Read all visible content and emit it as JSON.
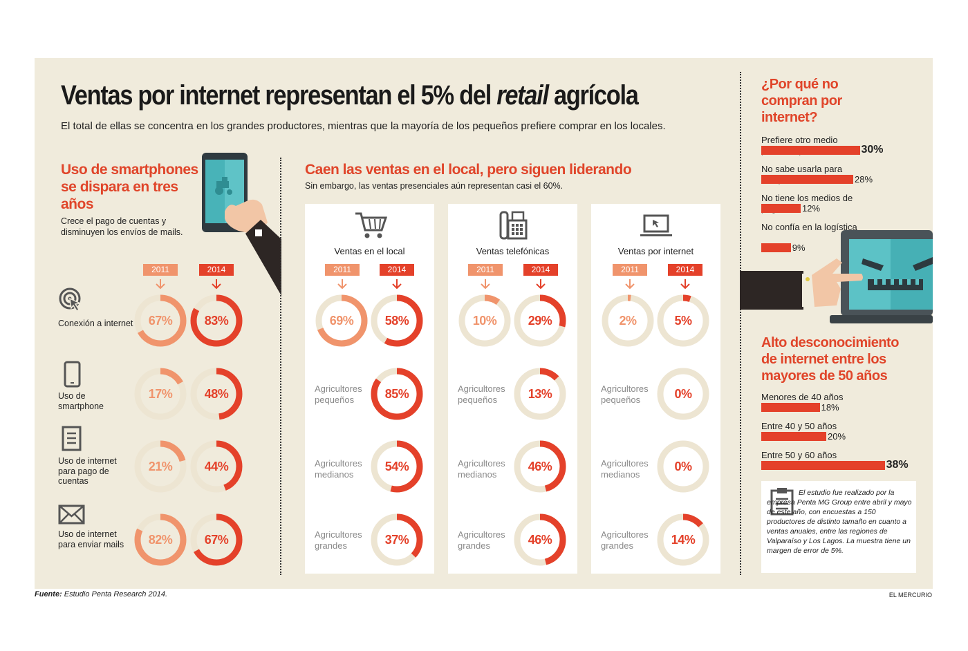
{
  "header": {
    "title_main": "Ventas por internet representan el 5% del ",
    "title_italic": "retail",
    "title_end": " agrícola",
    "subtitle": "El total de ellas se concentra en los grandes productores, mientras que la mayoría de los pequeños prefiere comprar en los locales."
  },
  "smartphones": {
    "title": "Uso de smartphones se dispara en tres años",
    "description": "Crece el pago de cuentas y disminuyen los envíos de mails."
  },
  "ventas": {
    "title": "Caen las ventas en el local, pero siguen liderando",
    "description": "Sin embargo, las ventas presenciales aún representan casi el 60%."
  },
  "year_labels": [
    "2011",
    "2014"
  ],
  "colors": {
    "y2011": "#f0946c",
    "y2014": "#e4412a",
    "track": "#ede5d2",
    "background": "#f0ebdc"
  },
  "chart_data": [
    {
      "type": "donut",
      "title": "Uso de smartphones se dispara en tres años",
      "categories": [
        "Conexión a internet",
        "Uso de smartphone",
        "Uso de internet para pago de cuentas",
        "Uso de internet para enviar mails"
      ],
      "icons": [
        "target-cursor-icon",
        "smartphone-icon",
        "document-icon",
        "envelope-icon"
      ],
      "series": [
        {
          "name": "2011",
          "values": [
            67,
            17,
            21,
            82
          ],
          "labels": [
            "67%",
            "17%",
            "21%",
            "82%"
          ]
        },
        {
          "name": "2014",
          "values": [
            83,
            48,
            44,
            67
          ],
          "labels": [
            "83%",
            "48%",
            "44%",
            "67%"
          ]
        }
      ]
    },
    {
      "type": "donut",
      "title": "Caen las ventas en el local, pero siguen liderando",
      "channels": [
        {
          "name": "Ventas en el local",
          "icon": "shopping-cart-icon",
          "y2011": 69,
          "y2011_label": "69%",
          "y2014": 58,
          "y2014_label": "58%",
          "segments": [
            {
              "label": "Agricultores pequeños",
              "value": 85,
              "display": "85%"
            },
            {
              "label": "Agricultores medianos",
              "value": 54,
              "display": "54%"
            },
            {
              "label": "Agricultores grandes",
              "value": 37,
              "display": "37%"
            }
          ]
        },
        {
          "name": "Ventas telefónicas",
          "icon": "telephone-icon",
          "y2011": 10,
          "y2011_label": "10%",
          "y2014": 29,
          "y2014_label": "29%",
          "segments": [
            {
              "label": "Agricultores pequeños",
              "value": 13,
              "display": "13%"
            },
            {
              "label": "Agricultores medianos",
              "value": 46,
              "display": "46%"
            },
            {
              "label": "Agricultores grandes",
              "value": 46,
              "display": "46%"
            }
          ]
        },
        {
          "name": "Ventas por internet",
          "icon": "laptop-icon",
          "y2011": 2,
          "y2011_label": "2%",
          "y2014": 5,
          "y2014_label": "5%",
          "segments": [
            {
              "label": "Agricultores pequeños",
              "value": 0,
              "display": "0%"
            },
            {
              "label": "Agricultores medianos",
              "value": 0,
              "display": "0%"
            },
            {
              "label": "Agricultores grandes",
              "value": 14,
              "display": "14%"
            }
          ]
        }
      ]
    },
    {
      "type": "bar",
      "title": "¿Por qué no compran por internet?",
      "categories": [
        "Prefiere otro medio para comprar",
        "No sabe usarla para comprar",
        "No tiene los medios de pago",
        "No confía en la logística"
      ],
      "values": [
        30,
        28,
        12,
        9
      ],
      "labels": [
        "30%",
        "28%",
        "12%",
        "9%"
      ]
    },
    {
      "type": "bar",
      "title": "Alto desconocimiento de internet entre los mayores de 50 años",
      "categories": [
        "Menores de 40 años",
        "Entre 40 y 50 años",
        "Entre 50 y 60 años"
      ],
      "values": [
        18,
        20,
        38
      ],
      "labels": [
        "18%",
        "20%",
        "38%"
      ]
    }
  ],
  "why_not": {
    "title": "¿Por qué no compran por internet?"
  },
  "desconocimiento": {
    "title": "Alto desconocimiento de internet entre los mayores de 50 años"
  },
  "note": "El estudio fue realizado por la empresa Penta MG Group entre abril y mayo de este año, con encuestas a 150 productores de distinto tamaño en cuanto a ventas anuales, entre las regiones de Valparaíso y Los Lagos. La muestra tiene un margen de error de 5%.",
  "footer": {
    "source_label": "Fuente:",
    "source_text": " Estudio Penta Research 2014.",
    "brand": "EL MERCURIO"
  }
}
